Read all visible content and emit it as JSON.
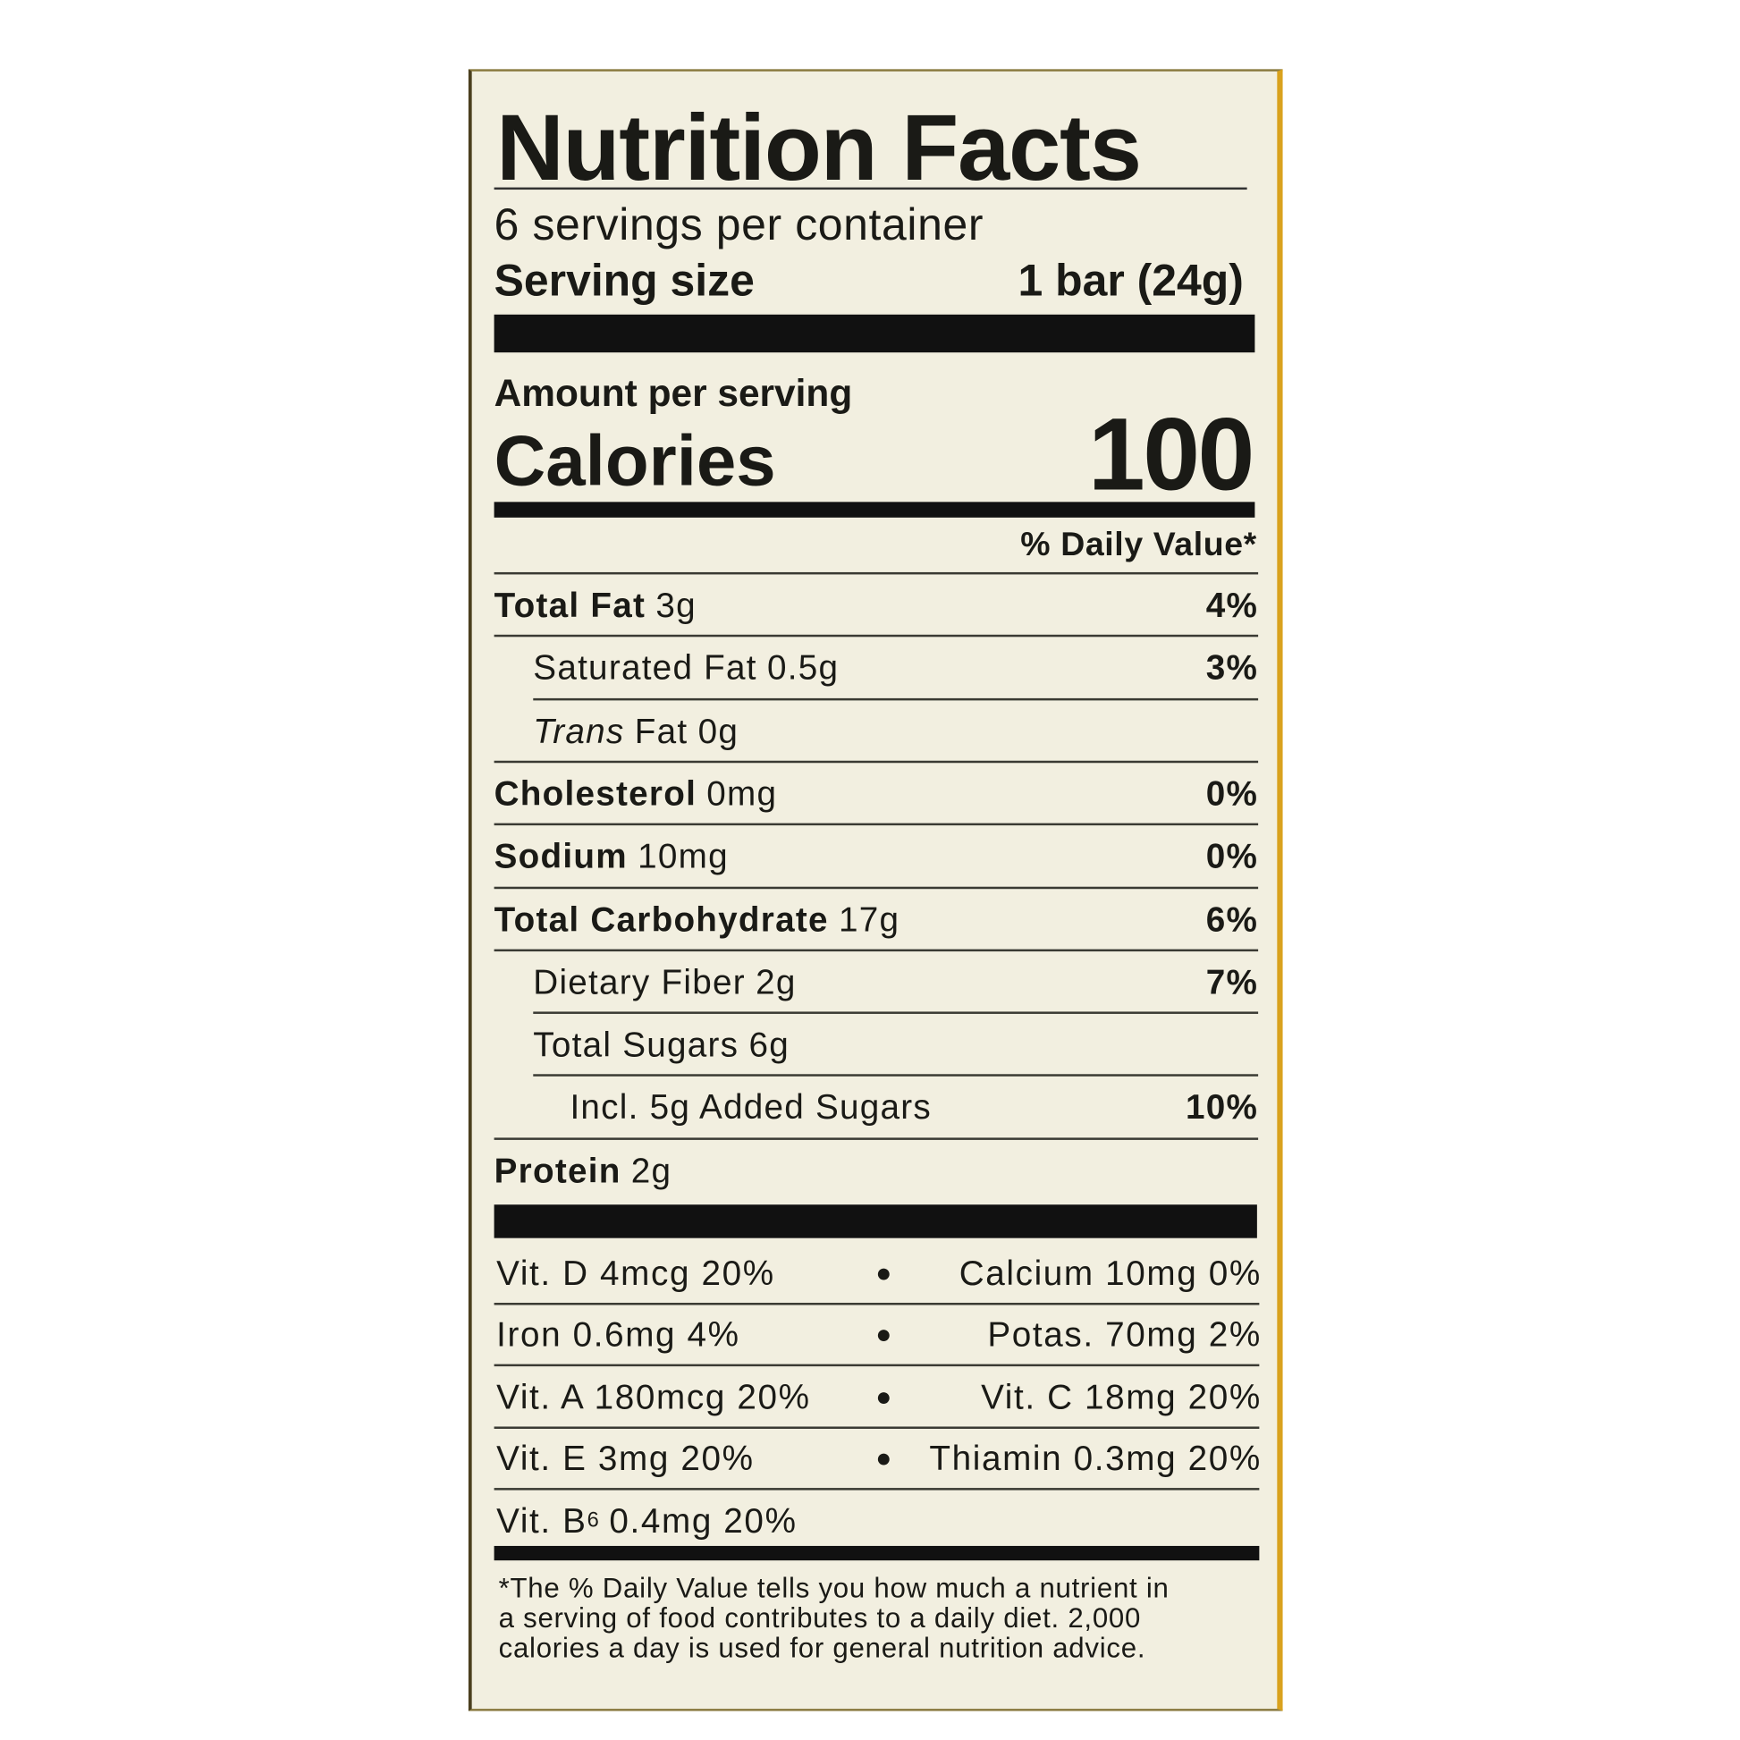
{
  "header": {
    "title": "Nutrition Facts",
    "servings": "6 servings per container",
    "serving_size_label": "Serving size",
    "serving_size_value": "1 bar (24g)"
  },
  "calories": {
    "amount_label": "Amount per serving",
    "label": "Calories",
    "value": "100",
    "dv_header": "% Daily Value*"
  },
  "nutrients": [
    {
      "label": "Total Fat",
      "amount": "3g",
      "dv": "4%",
      "level": 0
    },
    {
      "label": "Saturated Fat",
      "amount": "0.5g",
      "dv": "3%",
      "level": 1
    },
    {
      "label_italic": "Trans",
      "label": "Fat",
      "amount": "0g",
      "level": 1
    },
    {
      "label": "Cholesterol",
      "amount": "0mg",
      "dv": "0%",
      "level": 0
    },
    {
      "label": "Sodium",
      "amount": "10mg",
      "dv": "0%",
      "level": 0
    },
    {
      "label": "Total Carbohydrate",
      "amount": "17g",
      "dv": "6%",
      "level": 0
    },
    {
      "label": "Dietary Fiber",
      "amount": "2g",
      "dv": "7%",
      "level": 1
    },
    {
      "label": "Total Sugars",
      "amount": "6g",
      "level": 1
    },
    {
      "label": "Incl. 5g Added Sugars",
      "dv": "10%",
      "level": 2
    },
    {
      "label": "Protein",
      "amount": "2g",
      "level": 0
    }
  ],
  "vitamins": [
    {
      "left": "Vit. D 4mcg 20%",
      "right": "Calcium 10mg 0%"
    },
    {
      "left": "Iron 0.6mg 4%",
      "right": "Potas. 70mg 2%"
    },
    {
      "left": "Vit. A 180mcg 20%",
      "right": "Vit. C 18mg 20%"
    },
    {
      "left": "Vit. E 3mg 20%",
      "right": "Thiamin 0.3mg 20%"
    },
    {
      "left_text": "Vit. B",
      "left_sub": "6",
      "left_rest": "0.4mg 20%"
    }
  ],
  "footnote": [
    "*The % Daily Value tells you how much a nutrient in",
    "a serving of food contributes to a daily diet. 2,000",
    "calories a day is used for general nutrition advice."
  ]
}
